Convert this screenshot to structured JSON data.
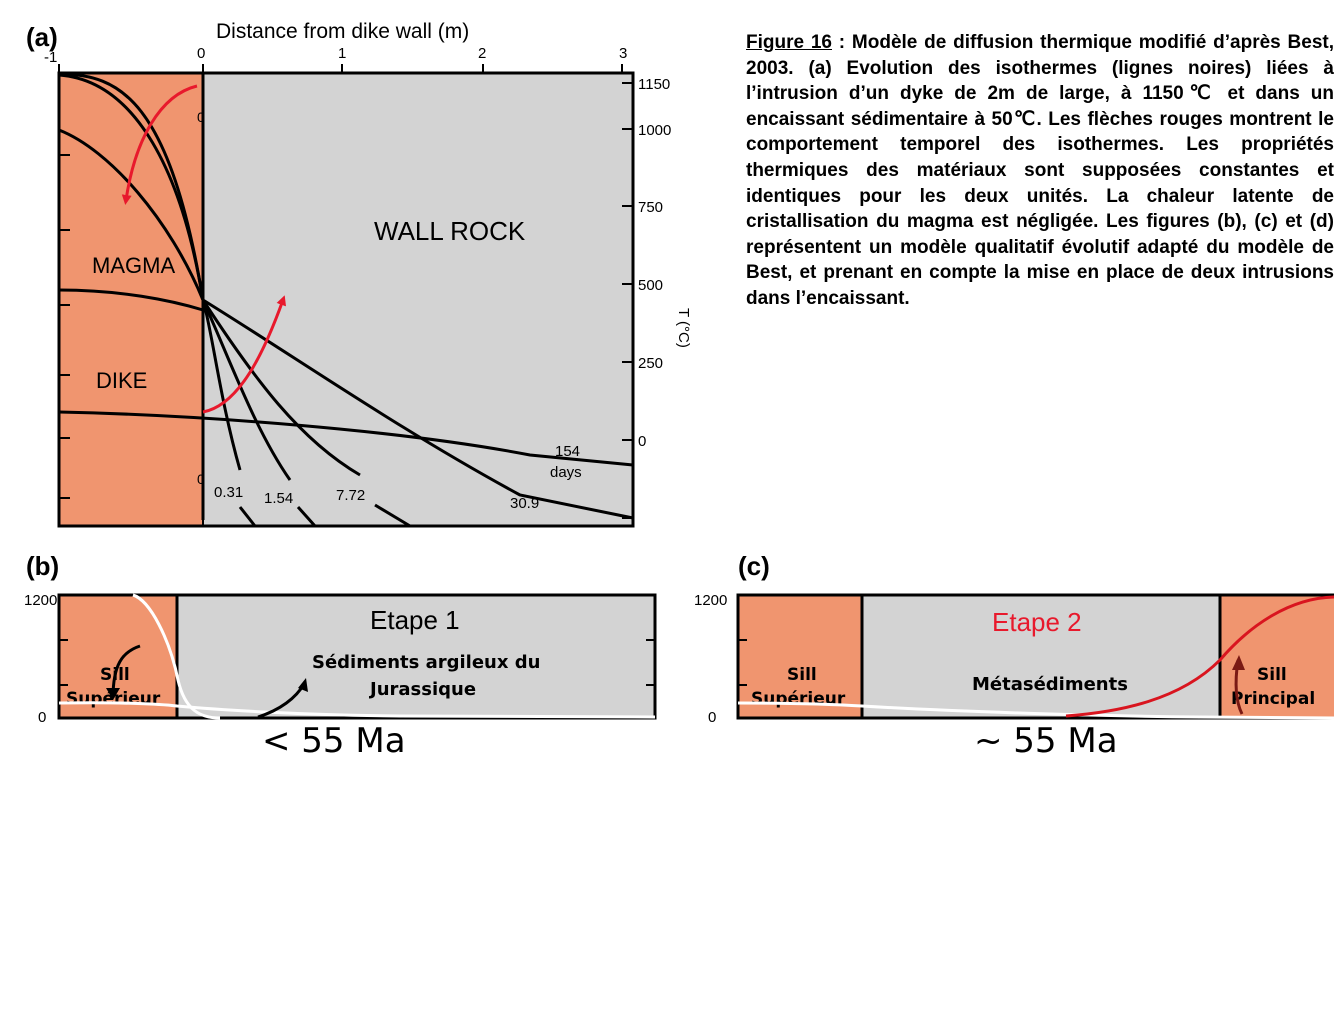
{
  "caption": {
    "figure_label": "Figure 16",
    "text": " : Modèle de diffusion thermique modifié d’après Best, 2003. (a) Evolution des isothermes (lignes noires) liées à l’intrusion d’un dyke de 2m de large, à 1150℃ et dans un encaissant sédimentaire à 50℃. Les flèches rouges montrent le comportement temporel des isothermes. Les propriétés thermiques des matériaux sont supposées constantes et identiques pour les deux unités. La chaleur latente de cristallisation du magma est négligée. Les figures (b), (c) et (d) représentent un modèle qualitatif évolutif adapté du modèle de Best, et prenant en compte la mise en place de deux intrusions dans l’encaissant."
  },
  "panel_a": {
    "label": "(a)",
    "x_axis_title": "Distance from dike wall (m)",
    "x_ticks": [
      "-1",
      "0",
      "1",
      "2",
      "3"
    ],
    "y_axis_title": "T (°C)",
    "y_ticks": [
      "1150",
      "1000",
      "750",
      "500",
      "250",
      "0"
    ],
    "magma_label": "MAGMA",
    "dike_label": "DIKE",
    "wall_rock_label": "WALL ROCK",
    "curve_labels": {
      "zero_top": "0",
      "zero_bottom": "0",
      "t_031": "0.31",
      "t_154": "1.54",
      "t_772": "7.72",
      "t_309": "30.9",
      "t_154d_value": "154",
      "t_154d_unit": "days"
    },
    "colors": {
      "magma": "#f0956f",
      "wall_rock": "#d3d3d3",
      "arrow": "#e8192c"
    }
  },
  "panel_b": {
    "label": "(b)",
    "y_top": "1200",
    "y_bottom": "0",
    "stage_title": "Etape 1",
    "rock_label_line1": "Sédiments argileux du",
    "rock_label_line2": "Jurassique",
    "sill_label_line1": "Sill",
    "sill_label_line2": "Supérieur",
    "age": "< 55 Ma"
  },
  "panel_c": {
    "label": "(c)",
    "y_top": "1200",
    "y_bottom": "0",
    "stage_title": "Etape 2",
    "rock_label": "Métasédiments",
    "sill_left_line1": "Sill",
    "sill_left_line2": "Supérieur",
    "sill_right_line1": "Sill",
    "sill_right_line2": "Principal",
    "age": "~ 55 Ma",
    "colors": {
      "stage_title": "#e8192c",
      "curve": "#d9151f",
      "arrow": "#7a1a14"
    }
  }
}
